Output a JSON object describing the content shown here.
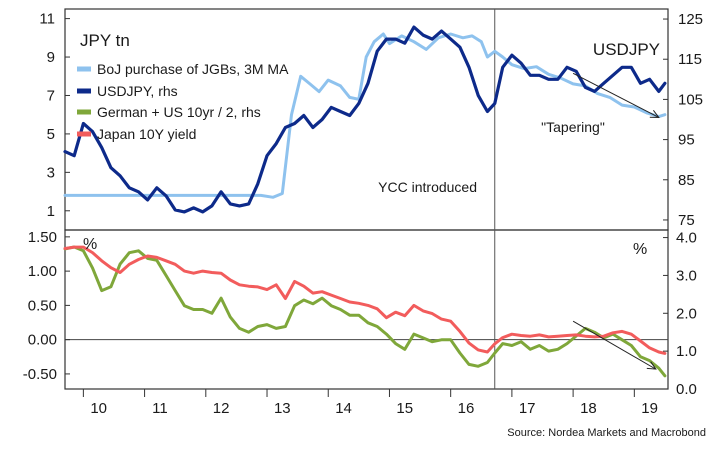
{
  "source": "Source: Nordea Markets and Macrobond",
  "colors": {
    "boj": "#8ec2ee",
    "usdjpy": "#0d2a8a",
    "german_us": "#7fa73a",
    "japan10y": "#f25c5c",
    "axis": "#333333",
    "divider": "#555555"
  },
  "chart_data": [
    {
      "type": "line",
      "panel": "top",
      "left_axis_title": "JPY tn",
      "right_axis_title": "USDJPY",
      "ylim_left": [
        0,
        11.5
      ],
      "ylim_right": [
        72.5,
        127.5
      ],
      "yticks_left": [
        1,
        3,
        5,
        7,
        9,
        11
      ],
      "yticks_right": [
        75,
        85,
        95,
        105,
        115,
        125
      ],
      "xlim": [
        2009.7,
        2019.55
      ],
      "annotations": {
        "ycc": "YCC introduced",
        "tapering": "\"Tapering\"",
        "ycc_year": 2016.72
      },
      "trend_arrow": {
        "from": [
          2018.0,
          111.5
        ],
        "to": [
          2019.4,
          100.5
        ]
      },
      "series": [
        {
          "name": "BoJ purchase of JGBs, 3M MA",
          "axis": "left",
          "x": [
            2009.7,
            2010.0,
            2010.5,
            2011.0,
            2011.5,
            2012.0,
            2012.5,
            2012.9,
            2013.1,
            2013.25,
            2013.4,
            2013.55,
            2013.7,
            2013.85,
            2014.0,
            2014.2,
            2014.35,
            2014.5,
            2014.62,
            2014.75,
            2014.9,
            2015.0,
            2015.2,
            2015.4,
            2015.6,
            2015.8,
            2016.0,
            2016.2,
            2016.35,
            2016.5,
            2016.6,
            2016.72,
            2016.85,
            2017.0,
            2017.2,
            2017.4,
            2017.6,
            2017.8,
            2018.0,
            2018.2,
            2018.4,
            2018.6,
            2018.8,
            2019.0,
            2019.2,
            2019.4,
            2019.5
          ],
          "values": [
            1.8,
            1.8,
            1.8,
            1.8,
            1.8,
            1.8,
            1.8,
            1.8,
            1.7,
            1.9,
            6.0,
            8.0,
            7.6,
            7.2,
            7.8,
            7.5,
            6.9,
            6.8,
            9.0,
            9.8,
            10.2,
            9.7,
            10.1,
            9.8,
            9.4,
            10.0,
            10.2,
            10.0,
            10.1,
            9.8,
            9.0,
            9.3,
            9.0,
            8.6,
            8.4,
            8.5,
            8.1,
            7.9,
            7.6,
            7.5,
            7.1,
            6.9,
            6.5,
            6.4,
            6.1,
            5.9,
            6.0
          ]
        },
        {
          "name": "USDJPY, rhs",
          "axis": "right",
          "x": [
            2009.7,
            2009.85,
            2010.0,
            2010.15,
            2010.3,
            2010.45,
            2010.6,
            2010.75,
            2010.9,
            2011.05,
            2011.2,
            2011.35,
            2011.5,
            2011.65,
            2011.8,
            2011.95,
            2012.1,
            2012.25,
            2012.4,
            2012.55,
            2012.7,
            2012.85,
            2013.0,
            2013.15,
            2013.3,
            2013.45,
            2013.6,
            2013.75,
            2013.9,
            2014.05,
            2014.2,
            2014.35,
            2014.5,
            2014.65,
            2014.8,
            2014.95,
            2015.1,
            2015.25,
            2015.4,
            2015.55,
            2015.7,
            2015.85,
            2016.0,
            2016.15,
            2016.3,
            2016.45,
            2016.6,
            2016.72,
            2016.85,
            2017.0,
            2017.15,
            2017.3,
            2017.45,
            2017.6,
            2017.75,
            2017.9,
            2018.05,
            2018.2,
            2018.35,
            2018.5,
            2018.65,
            2018.8,
            2018.95,
            2019.1,
            2019.25,
            2019.4,
            2019.5
          ],
          "values": [
            92,
            91,
            99,
            97,
            93,
            88,
            86,
            83,
            82,
            80,
            83,
            81,
            77.5,
            77,
            78,
            77,
            78.5,
            82,
            79,
            78.5,
            79,
            84,
            91,
            94,
            98,
            99,
            101,
            98,
            100,
            103,
            102,
            101,
            104,
            109,
            117,
            120,
            120,
            119,
            123,
            121,
            120,
            122,
            120,
            118,
            113,
            106,
            102,
            104,
            113,
            116,
            114,
            111,
            111,
            110,
            110,
            113,
            112,
            108,
            107,
            109,
            111,
            113,
            113,
            109,
            110,
            107,
            109
          ]
        }
      ]
    },
    {
      "type": "line",
      "panel": "bottom",
      "left_axis_title": "%",
      "right_axis_title": "%",
      "ylim_left": [
        -0.72,
        1.6
      ],
      "ylim_right": [
        0.0,
        4.2
      ],
      "yticks_left": [
        "1.50",
        "1.00",
        "0.50",
        "0.00",
        "-0.50"
      ],
      "yticks_left_values": [
        1.5,
        1.0,
        0.5,
        0.0,
        -0.5
      ],
      "yticks_right": [
        "4.0",
        "3.0",
        "2.0",
        "1.0",
        "0.0"
      ],
      "yticks_right_values": [
        4.0,
        3.0,
        2.0,
        1.0,
        0.0
      ],
      "xlim": [
        2009.7,
        2019.55
      ],
      "x_tick_labels": [
        "10",
        "11",
        "12",
        "13",
        "14",
        "15",
        "16",
        "17",
        "18",
        "19"
      ],
      "x_tick_centers": [
        2010.25,
        2011.25,
        2012.25,
        2013.25,
        2014.25,
        2015.25,
        2016.25,
        2017.25,
        2018.25,
        2019.25
      ],
      "x_tick_marks": [
        2010,
        2011,
        2012,
        2013,
        2014,
        2015,
        2016,
        2017,
        2018,
        2019
      ],
      "trend_arrow": {
        "from": [
          2018.0,
          0.27
        ],
        "to": [
          2019.35,
          -0.43
        ]
      },
      "series": [
        {
          "name": "German + US 10yr / 2, rhs",
          "axis": "right",
          "x": [
            2009.7,
            2009.85,
            2010.0,
            2010.15,
            2010.3,
            2010.45,
            2010.6,
            2010.75,
            2010.9,
            2011.05,
            2011.2,
            2011.35,
            2011.5,
            2011.65,
            2011.8,
            2011.95,
            2012.1,
            2012.25,
            2012.4,
            2012.55,
            2012.7,
            2012.85,
            2013.0,
            2013.15,
            2013.3,
            2013.45,
            2013.6,
            2013.75,
            2013.9,
            2014.05,
            2014.2,
            2014.35,
            2014.5,
            2014.65,
            2014.8,
            2014.95,
            2015.1,
            2015.25,
            2015.4,
            2015.55,
            2015.7,
            2015.85,
            2016.0,
            2016.15,
            2016.3,
            2016.45,
            2016.6,
            2016.72,
            2016.85,
            2017.0,
            2017.15,
            2017.3,
            2017.45,
            2017.6,
            2017.75,
            2017.9,
            2018.05,
            2018.2,
            2018.35,
            2018.5,
            2018.65,
            2018.8,
            2018.95,
            2019.1,
            2019.25,
            2019.4,
            2019.5
          ],
          "values": [
            3.7,
            3.75,
            3.65,
            3.2,
            2.6,
            2.7,
            3.3,
            3.6,
            3.65,
            3.45,
            3.4,
            3.0,
            2.6,
            2.2,
            2.1,
            2.1,
            2.0,
            2.4,
            1.9,
            1.6,
            1.5,
            1.65,
            1.7,
            1.6,
            1.65,
            2.2,
            2.35,
            2.25,
            2.4,
            2.2,
            2.1,
            1.95,
            1.95,
            1.75,
            1.65,
            1.45,
            1.2,
            1.05,
            1.45,
            1.35,
            1.25,
            1.3,
            1.3,
            0.95,
            0.65,
            0.6,
            0.7,
            0.95,
            1.2,
            1.15,
            1.25,
            1.05,
            1.15,
            1.0,
            1.05,
            1.2,
            1.4,
            1.6,
            1.5,
            1.35,
            1.45,
            1.3,
            1.15,
            0.85,
            0.75,
            0.55,
            0.35
          ]
        },
        {
          "name": "Japan 10Y yield",
          "axis": "left",
          "x": [
            2009.7,
            2009.85,
            2010.0,
            2010.15,
            2010.3,
            2010.45,
            2010.6,
            2010.75,
            2010.9,
            2011.05,
            2011.2,
            2011.35,
            2011.5,
            2011.65,
            2011.8,
            2011.95,
            2012.1,
            2012.25,
            2012.4,
            2012.55,
            2012.7,
            2012.85,
            2013.0,
            2013.15,
            2013.3,
            2013.45,
            2013.6,
            2013.75,
            2013.9,
            2014.05,
            2014.2,
            2014.35,
            2014.5,
            2014.65,
            2014.8,
            2014.95,
            2015.1,
            2015.25,
            2015.4,
            2015.55,
            2015.7,
            2015.85,
            2016.0,
            2016.15,
            2016.3,
            2016.45,
            2016.6,
            2016.72,
            2016.85,
            2017.0,
            2017.15,
            2017.3,
            2017.45,
            2017.6,
            2017.75,
            2017.9,
            2018.05,
            2018.2,
            2018.35,
            2018.5,
            2018.65,
            2018.8,
            2018.95,
            2019.1,
            2019.25,
            2019.4,
            2019.5
          ],
          "values": [
            1.33,
            1.35,
            1.35,
            1.27,
            1.15,
            1.05,
            0.98,
            1.1,
            1.17,
            1.22,
            1.2,
            1.15,
            1.1,
            1.0,
            0.97,
            1.0,
            0.98,
            0.97,
            0.87,
            0.8,
            0.78,
            0.77,
            0.73,
            0.8,
            0.6,
            0.85,
            0.78,
            0.68,
            0.7,
            0.65,
            0.6,
            0.55,
            0.53,
            0.5,
            0.45,
            0.32,
            0.4,
            0.35,
            0.5,
            0.42,
            0.38,
            0.3,
            0.27,
            0.12,
            -0.05,
            -0.15,
            -0.18,
            -0.06,
            0.03,
            0.08,
            0.06,
            0.05,
            0.07,
            0.04,
            0.05,
            0.06,
            0.07,
            0.05,
            0.04,
            0.05,
            0.1,
            0.12,
            0.08,
            -0.02,
            -0.12,
            -0.18,
            -0.2
          ]
        }
      ]
    }
  ]
}
